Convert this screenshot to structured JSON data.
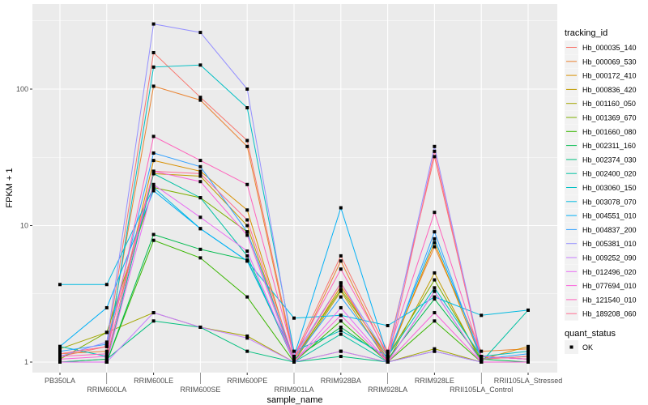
{
  "chart_data": {
    "type": "line",
    "xlabel": "sample_name",
    "ylabel": "FPKM + 1",
    "y_scale": "log10",
    "ylim": [
      0.84,
      420
    ],
    "y_ticks": [
      1,
      10,
      100
    ],
    "y_tick_labels": [
      "1",
      "10",
      "100"
    ],
    "grid": true,
    "legend_position": "right",
    "categories": [
      "PB350LA",
      "RRIM600LA",
      "RRIM600LE",
      "RRIM600SE",
      "RRIM600PE",
      "RRIM901LA",
      "RRIM928BA",
      "RRIM928LA",
      "RRIM928LE",
      "RRII105LA_Control",
      "RRII105LA_Stressed"
    ],
    "legend_title": "tracking_id",
    "shape_legend_title": "quant_status",
    "shape_legend_items": [
      "OK"
    ],
    "series": [
      {
        "name": "Hb_000035_140",
        "color": "#F8766D",
        "values": [
          1.1,
          1.3,
          185,
          87,
          42,
          1.1,
          6.0,
          1.2,
          32,
          1.1,
          1.05
        ]
      },
      {
        "name": "Hb_000069_530",
        "color": "#EA8331",
        "values": [
          1.15,
          1.2,
          105,
          83,
          38,
          1.05,
          5.5,
          1.1,
          7.0,
          1.2,
          1.25
        ]
      },
      {
        "name": "Hb_000172_410",
        "color": "#D89000",
        "values": [
          1.0,
          1.05,
          30,
          25,
          13,
          1.0,
          3.6,
          1.05,
          7.5,
          1.05,
          1.3
        ]
      },
      {
        "name": "Hb_000836_420",
        "color": "#C09B00",
        "values": [
          1.0,
          1.0,
          24,
          23,
          10,
          1.0,
          3.3,
          1.0,
          4.5,
          1.0,
          1.0
        ]
      },
      {
        "name": "Hb_001160_050",
        "color": "#A3A500",
        "values": [
          1.25,
          1.65,
          2.3,
          1.8,
          1.55,
          1.0,
          1.2,
          1.0,
          1.25,
          1.0,
          1.0
        ]
      },
      {
        "name": "Hb_001369_670",
        "color": "#7CAE00",
        "values": [
          1.05,
          1.65,
          19,
          16,
          9,
          1.05,
          3.4,
          1.1,
          4.0,
          1.05,
          1.1
        ]
      },
      {
        "name": "Hb_001660_080",
        "color": "#39B600",
        "values": [
          1.0,
          1.0,
          7.8,
          5.8,
          3.0,
          1.0,
          2.0,
          1.0,
          2.0,
          1.0,
          1.0
        ]
      },
      {
        "name": "Hb_002311_160",
        "color": "#00BB4E",
        "values": [
          1.0,
          1.0,
          8.6,
          6.7,
          5.6,
          1.05,
          1.8,
          1.05,
          2.9,
          1.05,
          1.0
        ]
      },
      {
        "name": "Hb_002374_030",
        "color": "#00BF7D",
        "values": [
          1.0,
          1.05,
          2.0,
          1.8,
          1.2,
          1.0,
          1.1,
          1.0,
          1.2,
          1.0,
          1.0
        ]
      },
      {
        "name": "Hb_002400_020",
        "color": "#00C1A3",
        "values": [
          1.0,
          1.0,
          24,
          16,
          6.0,
          1.0,
          1.6,
          1.0,
          3.3,
          1.0,
          2.4
        ]
      },
      {
        "name": "Hb_003060_150",
        "color": "#00BFC4",
        "values": [
          1.3,
          1.1,
          145,
          150,
          73,
          1.2,
          1.7,
          1.1,
          3.5,
          1.1,
          1.2
        ]
      },
      {
        "name": "Hb_003078_070",
        "color": "#00BAE0",
        "values": [
          3.7,
          3.7,
          19,
          9.5,
          5.5,
          2.1,
          2.2,
          1.85,
          3.0,
          2.2,
          2.4
        ]
      },
      {
        "name": "Hb_004551_010",
        "color": "#00B0F6",
        "values": [
          1.3,
          2.5,
          18,
          9.5,
          5.5,
          1.1,
          13.5,
          1.1,
          8,
          1.1,
          1.05
        ]
      },
      {
        "name": "Hb_004837_200",
        "color": "#35A2FF",
        "values": [
          1.2,
          1.35,
          34,
          27,
          9,
          1.05,
          3.0,
          1.05,
          9,
          1.05,
          1.15
        ]
      },
      {
        "name": "Hb_005381_010",
        "color": "#9590FF",
        "values": [
          1.1,
          1.4,
          300,
          260,
          100,
          1.1,
          3.8,
          1.1,
          38,
          1.1,
          1.05
        ]
      },
      {
        "name": "Hb_009252_090",
        "color": "#C77CFF",
        "values": [
          1.0,
          1.0,
          2.3,
          1.8,
          1.5,
          1.0,
          1.2,
          1.0,
          1.2,
          1.0,
          1.0
        ]
      },
      {
        "name": "Hb_012496_020",
        "color": "#E76BF3",
        "values": [
          1.0,
          1.0,
          20,
          11.5,
          6.5,
          1.0,
          2.5,
          1.0,
          3.3,
          1.0,
          1.0
        ]
      },
      {
        "name": "Hb_077694_010",
        "color": "#FA62DB",
        "values": [
          1.05,
          1.1,
          25,
          21,
          8.5,
          1.0,
          2.2,
          1.0,
          2.3,
          1.0,
          1.0
        ]
      },
      {
        "name": "Hb_121540_010",
        "color": "#FF62BC",
        "values": [
          1.1,
          1.15,
          45,
          30,
          20,
          1.1,
          4.8,
          1.15,
          12.5,
          1.1,
          1.05
        ]
      },
      {
        "name": "Hb_189208_060",
        "color": "#FF6C91",
        "values": [
          1.15,
          1.3,
          25,
          24,
          11,
          1.05,
          3.8,
          1.0,
          35,
          1.05,
          1.1
        ]
      }
    ]
  }
}
